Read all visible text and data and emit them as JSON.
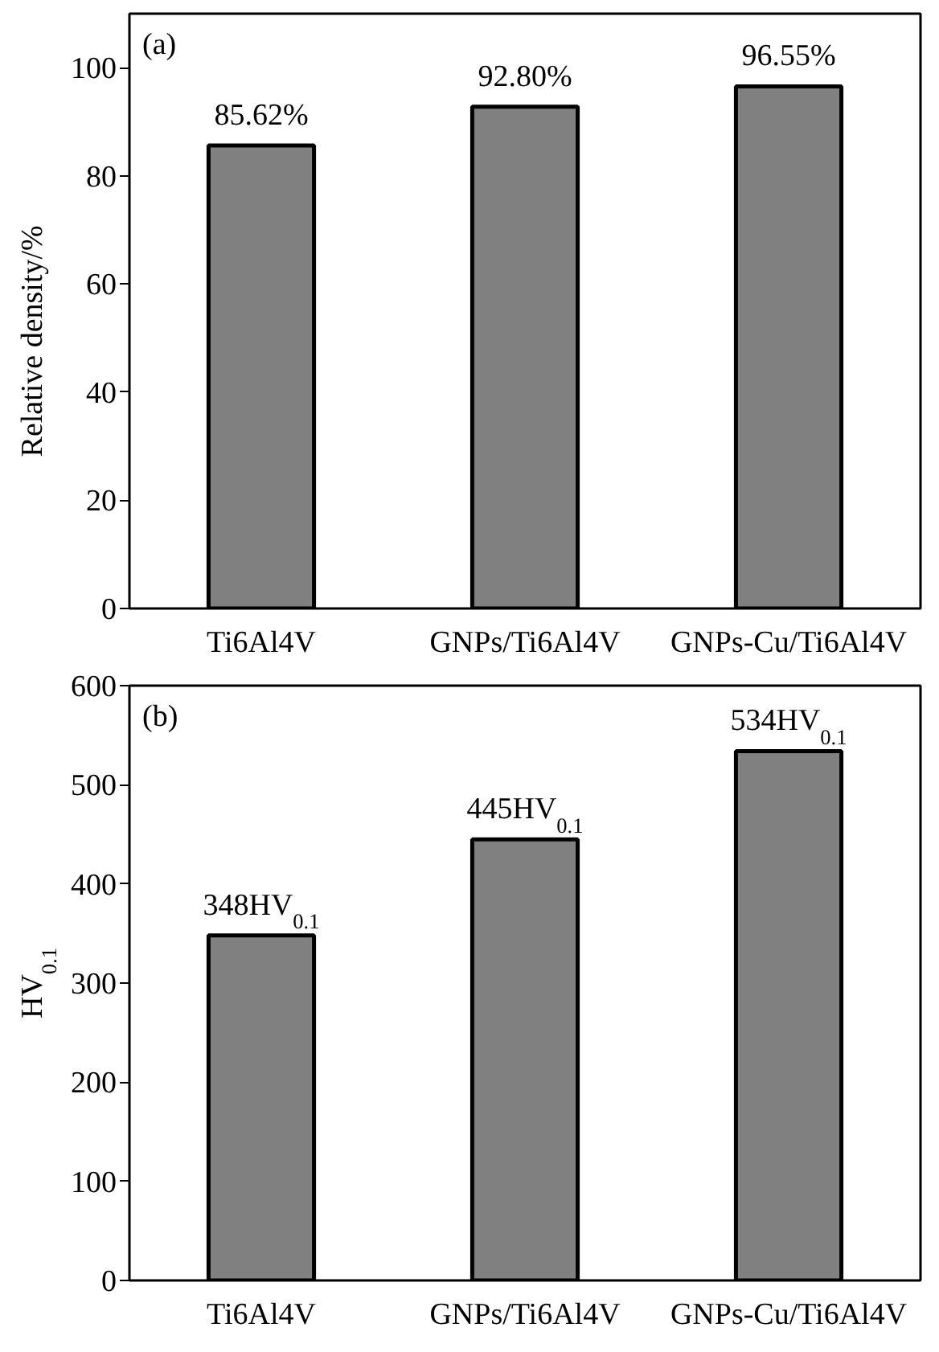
{
  "chart_data": [
    {
      "type": "bar",
      "title": "(a)",
      "ylabel": "Relative density/%",
      "categories": [
        "Ti6Al4V",
        "GNPs/Ti6Al4V",
        "GNPs-Cu/Ti6Al4V"
      ],
      "series": [
        {
          "color": "#808080",
          "values": [
            85.62,
            92.8,
            96.55
          ],
          "value_labels": [
            "85.62%",
            "92.80%",
            "96.55%"
          ]
        }
      ],
      "ylim": [
        0,
        110
      ],
      "yticks": [
        0,
        20,
        40,
        60,
        80,
        100
      ],
      "grid": false
    },
    {
      "type": "bar",
      "title": "(b)",
      "ylabel": "HV$_{0.1}$",
      "categories": [
        "Ti6Al4V",
        "GNPs/Ti6Al4V",
        "GNPs-Cu/Ti6Al4V"
      ],
      "series": [
        {
          "color": "#808080",
          "values": [
            348,
            445,
            534
          ],
          "value_labels": [
            "348HV$_{0.1}$",
            "445HV$_{0.1}$",
            "534HV$_{0.1}$"
          ]
        }
      ],
      "ylim": [
        0,
        600
      ],
      "yticks": [
        0,
        100,
        200,
        300,
        400,
        500,
        600
      ],
      "grid": false
    }
  ]
}
